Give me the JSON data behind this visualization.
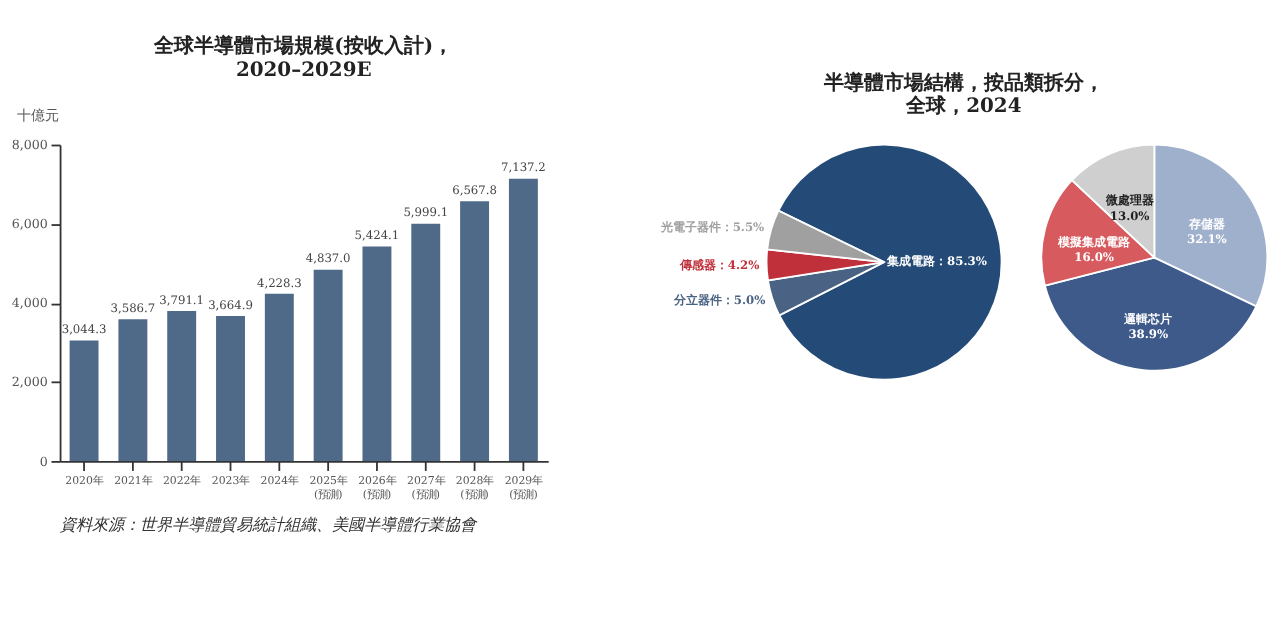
{
  "chart_data": [
    {
      "type": "bar",
      "title": [
        "全球半導體市場規模(按收入計)，",
        "2020–2029E"
      ],
      "ylabel": "十億元",
      "categories": [
        "2020年",
        "2021年",
        "2022年",
        "2023年",
        "2024年",
        "2025年\n(預測)",
        "2026年\n(預測)",
        "2027年\n(預測)",
        "2028年\n(預測)",
        "2029年\n(預測)"
      ],
      "values": [
        3044.3,
        3586.7,
        3791.1,
        3664.9,
        4228.3,
        4837.0,
        5424.1,
        5999.1,
        6567.8,
        7137.2
      ],
      "value_labels": [
        "3,044.3",
        "3,586.7",
        "3,791.1",
        "3,664.9",
        "4,228.3",
        "4,837.0",
        "5,424.1",
        "5,999.1",
        "6,567.8",
        "7,137.2"
      ],
      "color": "#4f6a88",
      "ylim": [
        0,
        8000
      ],
      "yticks": [
        {
          "value": 0,
          "label": "0"
        },
        {
          "value": 2000,
          "label": "2,000"
        },
        {
          "value": 4000,
          "label": "4,000"
        },
        {
          "value": 6000,
          "label": "6,000"
        },
        {
          "value": 8000,
          "label": "8,000"
        }
      ],
      "grid": false,
      "legend": false,
      "annotations": [
        "資料來源：世界半導體貿易統計組織、美國半導體行業協會"
      ]
    },
    {
      "type": "pie",
      "title": [
        "半導體市場結構，按品類拆分，",
        "全球，2024"
      ],
      "categories": [
        "集成電路",
        "分立器件",
        "傳感器",
        "光電子器件"
      ],
      "values": [
        85.3,
        5.0,
        4.2,
        5.5
      ],
      "colors": [
        "#244a78",
        "#4a6283",
        "#c0303a",
        "#a0a0a0"
      ],
      "value_labels": [
        "85.3%",
        "5.0%",
        "4.2%",
        "5.5%"
      ],
      "legend": false
    },
    {
      "type": "pie",
      "categories": [
        "存儲器",
        "邏輯芯片",
        "模擬集成電路",
        "微處理器"
      ],
      "values": [
        32.1,
        38.9,
        16.0,
        13.0
      ],
      "colors": [
        "#9fb0cc",
        "#3d5a8a",
        "#d65a5e",
        "#cfcfcf"
      ],
      "value_labels": [
        "32.1%",
        "38.9%",
        "16.0%",
        "13.0%"
      ],
      "legend": false
    }
  ]
}
